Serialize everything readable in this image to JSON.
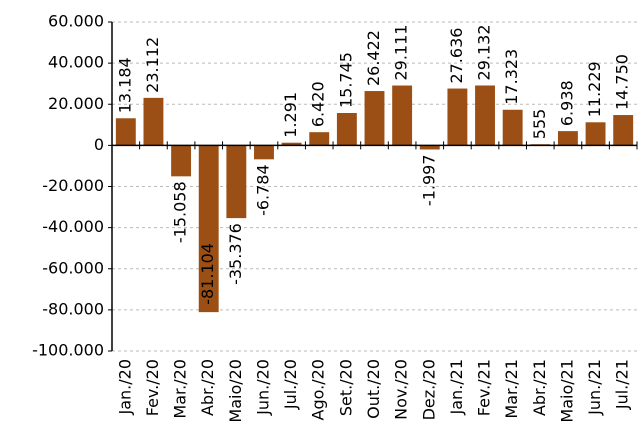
{
  "chart_data": {
    "type": "bar",
    "categories": [
      "Jan./20",
      "Fev./20",
      "Mar./20",
      "Abr./20",
      "Maio/20",
      "Jun./20",
      "Jul./20",
      "Ago./20",
      "Set./20",
      "Out./20",
      "Nov./20",
      "Dez./20",
      "Jan./21",
      "Fev./21",
      "Mar./21",
      "Abr./21",
      "Maio/21",
      "Jun./21",
      "Jul./21"
    ],
    "values": [
      13184,
      23112,
      -15058,
      -81104,
      -35376,
      -6784,
      1291,
      6420,
      15745,
      26422,
      29111,
      -1997,
      27636,
      29132,
      17323,
      555,
      6938,
      11229,
      14750
    ],
    "value_labels": [
      "13.184",
      "23.112",
      "-15.058",
      "-81.104",
      "-35.376",
      "-6.784",
      "1.291",
      "6.420",
      "15.745",
      "26.422",
      "29.111",
      "-1.997",
      "27.636",
      "29.132",
      "17.323",
      "555",
      "6.938",
      "11.229",
      "14.750"
    ],
    "color": "#9c4f14",
    "ylim": [
      -100000,
      60000
    ],
    "yticks": [
      {
        "value": -100000,
        "label": "-100.000"
      },
      {
        "value": -80000,
        "label": "-80.000"
      },
      {
        "value": -60000,
        "label": "-60.000"
      },
      {
        "value": -40000,
        "label": "-40.000"
      },
      {
        "value": -20000,
        "label": "-20.000"
      },
      0,
      {
        "value": 20000,
        "label": "20.000"
      },
      {
        "value": 40000,
        "label": "40.000"
      },
      {
        "value": 60000,
        "label": "60.000"
      }
    ],
    "grid": true
  }
}
